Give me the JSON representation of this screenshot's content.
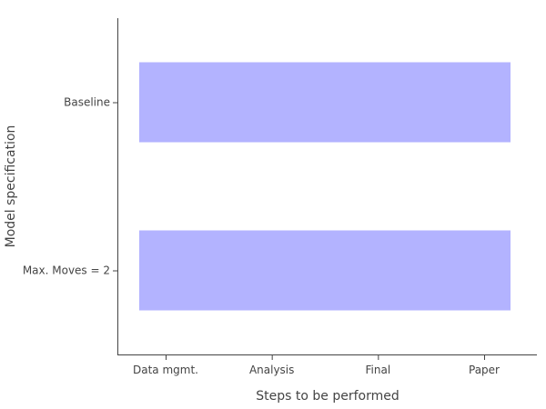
{
  "chart_data": {
    "type": "bar",
    "orientation": "horizontal",
    "xlabel": "Steps to be performed",
    "ylabel": "Model specification",
    "x_categories": [
      "Data mgmt.",
      "Analysis",
      "Final",
      "Paper"
    ],
    "categories": [
      "Baseline",
      "Max. Moves = 2"
    ],
    "bars": [
      {
        "category": "Baseline",
        "start": "Data mgmt.",
        "end": "Paper"
      },
      {
        "category": "Max. Moves = 2",
        "start": "Data mgmt.",
        "end": "Paper"
      }
    ],
    "bar_color": "#b3b3ff",
    "grid": false,
    "legend": false
  }
}
